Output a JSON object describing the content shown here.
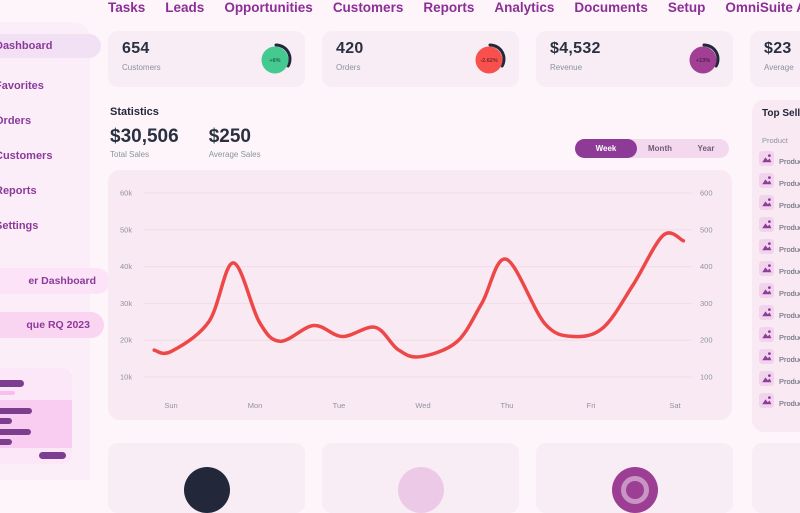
{
  "nav": {
    "items": [
      {
        "label": "Tasks"
      },
      {
        "label": "Leads"
      },
      {
        "label": "Opportunities"
      },
      {
        "label": "Customers"
      },
      {
        "label": "Reports"
      },
      {
        "label": "Analytics"
      },
      {
        "label": "Documents"
      },
      {
        "label": "Setup"
      },
      {
        "label": "OmniSuite App"
      }
    ]
  },
  "sidebar": {
    "items": [
      {
        "label": "Dashboard",
        "active": true
      },
      {
        "label": "Favorites",
        "active": false
      },
      {
        "label": "Orders",
        "active": false
      },
      {
        "label": "Customers",
        "active": false
      },
      {
        "label": "Reports",
        "active": false
      },
      {
        "label": "Settings",
        "active": false
      }
    ],
    "pills": [
      {
        "label": "er Dashboard"
      },
      {
        "label": "que RQ 2023"
      }
    ]
  },
  "stat_cards": [
    {
      "value": "654",
      "label": "Customers",
      "badge": "+6%",
      "badge_color": "#44ca91"
    },
    {
      "value": "420",
      "label": "Orders",
      "badge": "-2.62%",
      "badge_color": "#f7504d"
    },
    {
      "value": "$4,532",
      "label": "Revenue",
      "badge": "+13%",
      "badge_color": "#a03f93"
    },
    {
      "value": "$23",
      "label": "Average",
      "badge": "",
      "badge_color": ""
    }
  ],
  "statistics": {
    "title": "Statistics",
    "totals": [
      {
        "value": "$30,506",
        "label": "Total Sales"
      },
      {
        "value": "$250",
        "label": "Average Sales"
      }
    ],
    "range_tabs": [
      {
        "label": "Week",
        "active": true
      },
      {
        "label": "Month",
        "active": false
      },
      {
        "label": "Year",
        "active": false
      }
    ]
  },
  "chart_data": {
    "type": "line",
    "title": "Statistics",
    "x_categories": [
      "Sun",
      "Mon",
      "Tue",
      "Wed",
      "Thu",
      "Fri",
      "Sat"
    ],
    "y_left_ticks": [
      "10k",
      "20k",
      "30k",
      "40k",
      "50k",
      "60k"
    ],
    "y_right_ticks": [
      "100",
      "200",
      "300",
      "400",
      "500",
      "600"
    ],
    "y_left_range": [
      10000,
      60000
    ],
    "grid": true,
    "legend_position": "none",
    "line_color": "#ee4747",
    "series": [
      {
        "name": "Sales",
        "points": [
          [
            -0.2,
            17300
          ],
          [
            0,
            16900
          ],
          [
            0.45,
            25000
          ],
          [
            0.74,
            41000
          ],
          [
            1.05,
            25000
          ],
          [
            1.3,
            19700
          ],
          [
            1.7,
            24000
          ],
          [
            2.04,
            21000
          ],
          [
            2.43,
            23500
          ],
          [
            2.7,
            17500
          ],
          [
            2.96,
            15500
          ],
          [
            3.4,
            19500
          ],
          [
            3.7,
            30000
          ],
          [
            3.99,
            42000
          ],
          [
            4.45,
            24500
          ],
          [
            4.8,
            21000
          ],
          [
            5.15,
            23500
          ],
          [
            5.5,
            35000
          ],
          [
            5.86,
            48500
          ],
          [
            6.1,
            47000
          ]
        ]
      }
    ],
    "approx_day_values": {
      "Sun": 16900,
      "Mon": 20500,
      "Tue": 21000,
      "Wed": 15500,
      "Thu": 42000,
      "Fri": 22000,
      "Sat": 48000
    }
  },
  "top_selling": {
    "title": "Top Selling",
    "column_header": "Product",
    "rows": [
      {
        "label": "Product"
      },
      {
        "label": "Product"
      },
      {
        "label": "Product"
      },
      {
        "label": "Product"
      },
      {
        "label": "Product"
      },
      {
        "label": "Product"
      },
      {
        "label": "Product"
      },
      {
        "label": "Product"
      },
      {
        "label": "Product"
      },
      {
        "label": "Product"
      },
      {
        "label": "Product"
      },
      {
        "label": "Product"
      }
    ]
  },
  "bottom_cards": [
    {
      "icon": "dark-circle-icon",
      "circle_color": "#23273a",
      "ring": false
    },
    {
      "icon": "pink-circle-icon",
      "circle_color": "#ecc9e6",
      "ring": false
    },
    {
      "icon": "target-circle-icon",
      "circle_color": "#9c3f94",
      "ring": true
    }
  ],
  "colors": {
    "accent_purple": "#8b2f96",
    "chart_line_red": "#ee4747",
    "positive_green": "#44ca91",
    "negative_red": "#f7504d",
    "badge_purple": "#a03f93",
    "dark_text": "#23273a",
    "card_pink": "#f8ecf5",
    "panel_pink": "#f9e9f3"
  }
}
